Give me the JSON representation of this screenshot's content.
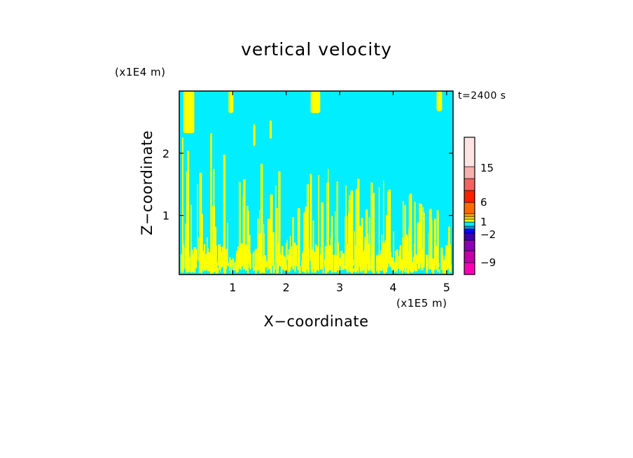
{
  "chart_data": {
    "type": "heatmap",
    "title": "vertical velocity",
    "xlabel": "X−coordinate",
    "ylabel": "Z−coordinate",
    "x_unit_label": "(x1E5 m)",
    "y_unit_label": "(x1E4 m)",
    "time_label": "t=2400 s",
    "xlim": [
      0,
      5.12
    ],
    "ylim": [
      0.05,
      3.0
    ],
    "x_ticks": [
      1,
      2,
      3,
      4,
      5
    ],
    "x_tick_labels": [
      "1",
      "2",
      "3",
      "4",
      "5"
    ],
    "y_ticks": [
      1,
      2
    ],
    "y_tick_labels": [
      "1",
      "2"
    ],
    "background_value_color": "#00eeff",
    "updraft_color": "#ffff00",
    "colorbar": {
      "levels": [
        {
          "color": "#ff00b4"
        },
        {
          "color": "#c000a8"
        },
        {
          "color": "#8c00b4"
        },
        {
          "color": "#3c00aa"
        },
        {
          "color": "#0000ff"
        },
        {
          "color": "#0090ff"
        },
        {
          "color": "#00eeff"
        },
        {
          "color": "#ffff00"
        },
        {
          "color": "#ffd200"
        },
        {
          "color": "#ffa800"
        },
        {
          "color": "#ff6a00"
        },
        {
          "color": "#ff1e00"
        },
        {
          "color": "#f06464"
        },
        {
          "color": "#f5b0b0"
        },
        {
          "color": "#fce4e4"
        }
      ],
      "labels": [
        "15",
        "6",
        "1",
        "−2",
        "−9"
      ]
    }
  }
}
